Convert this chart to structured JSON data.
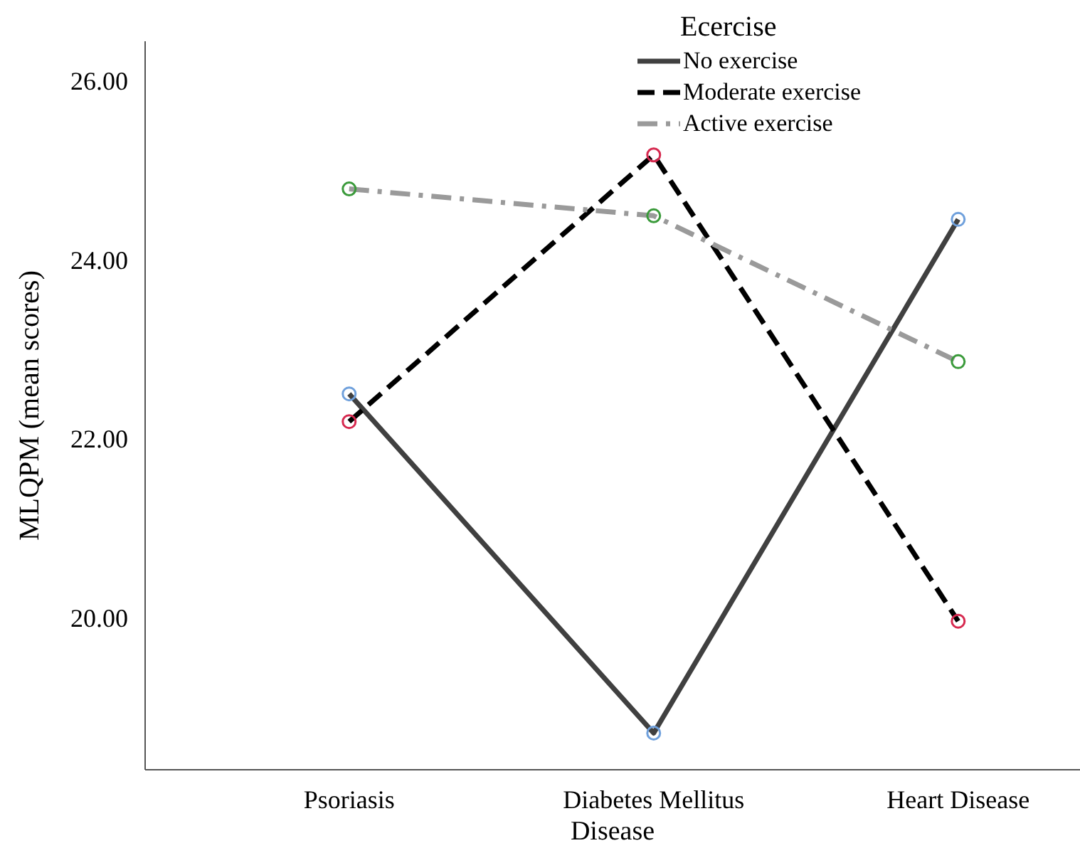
{
  "chart_data": {
    "type": "line",
    "xlabel": "Disease",
    "ylabel": "MLQPM (mean scores)",
    "legend_title": "Ecercise",
    "legend": "top right",
    "marker": "circle",
    "categories": [
      "Psoriasis",
      "Diabetes Mellitus",
      "Heart Disease"
    ],
    "ylim": [
      18.3,
      26.44
    ],
    "yticks": [
      {
        "value": 20,
        "label": "20.00"
      },
      {
        "value": 22,
        "label": "22.00"
      },
      {
        "value": 24,
        "label": "24.00"
      },
      {
        "value": 26,
        "label": "26.00"
      }
    ],
    "series": [
      {
        "name": "No exercise",
        "color": "#404040",
        "line_style": "solid",
        "colors": [
          "#6fa0dc",
          "#6fa0dc",
          "#6fa0dc"
        ],
        "values": [
          22.5,
          18.71,
          24.45
        ]
      },
      {
        "name": "Moderate exercise",
        "color": "#000000",
        "line_style": "dashed",
        "colors": [
          "#d6294f",
          "#d6294f",
          "#d6294f"
        ],
        "values": [
          22.19,
          25.17,
          19.96
        ]
      },
      {
        "name": "Active exercise",
        "color": "#9a9a9a",
        "line_style": "dashdot",
        "colors": [
          "#3a9a3a",
          "#3a9a3a",
          "#3a9a3a"
        ],
        "values": [
          24.79,
          24.49,
          22.86
        ]
      }
    ]
  }
}
